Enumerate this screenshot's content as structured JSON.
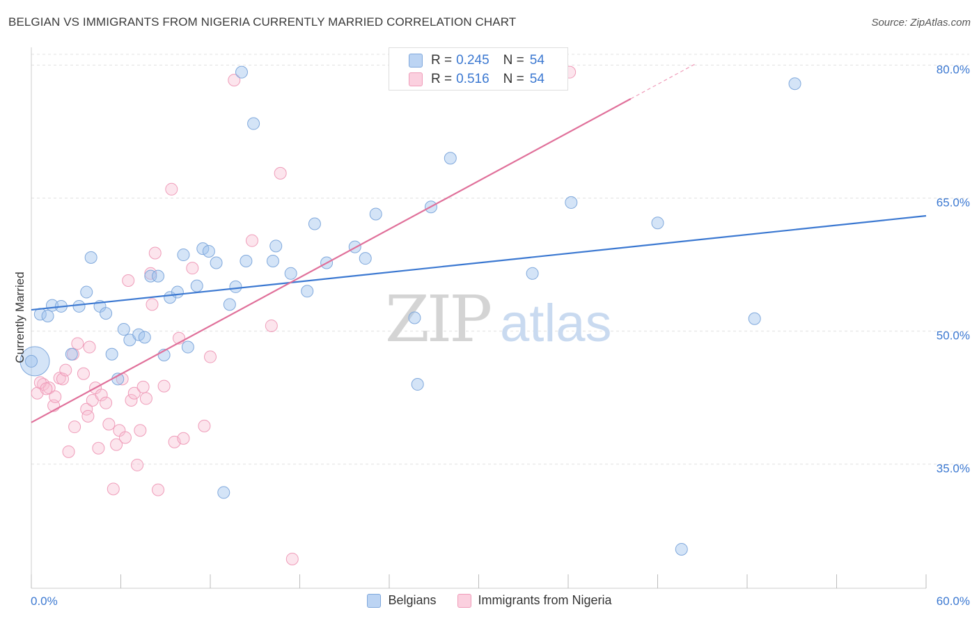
{
  "title": "BELGIAN VS IMMIGRANTS FROM NIGERIA CURRENTLY MARRIED CORRELATION CHART",
  "source": "Source: ZipAtlas.com",
  "watermark": {
    "zip": "ZIP",
    "atlas": "atlas"
  },
  "colors": {
    "blue": "#3b78d1",
    "blue_fill": "rgba(160,196,238,0.45)",
    "blue_stroke": "#7fa8dc",
    "pink": "#e0709a",
    "pink_fill": "rgba(248,190,210,0.40)",
    "pink_stroke": "#ef9cb9",
    "grid": "#e0e0e0",
    "tick_label": "#3b78d1"
  },
  "stat_legend": {
    "rows": [
      {
        "r_label": "R =",
        "r_value": "0.245",
        "n_label": "N =",
        "n_value": "54"
      },
      {
        "r_label": "R =",
        "r_value": "0.516",
        "n_label": "N =",
        "n_value": "54"
      }
    ]
  },
  "bottom_legend": {
    "items": [
      {
        "label": "Belgians"
      },
      {
        "label": "Immigrants from Nigeria"
      }
    ]
  },
  "chart_data": {
    "type": "scatter",
    "title": "BELGIAN VS IMMIGRANTS FROM NIGERIA CURRENTLY MARRIED CORRELATION CHART",
    "xlabel": "",
    "ylabel": "Currently Married",
    "xlim": [
      0,
      60
    ],
    "ylim": [
      21,
      82
    ],
    "x_tick_labels": [
      "0.0%",
      "60.0%"
    ],
    "y_ticks": [
      35,
      50,
      65,
      80
    ],
    "y_tick_labels": [
      "35.0%",
      "50.0%",
      "65.0%",
      "80.0%"
    ],
    "grid": true,
    "series": [
      {
        "name": "Belgians",
        "r": 0.245,
        "n": 54,
        "trend": {
          "x": [
            0,
            60
          ],
          "y": [
            52.4,
            63.0
          ]
        },
        "points": [
          [
            0.0,
            46.6
          ],
          [
            0.6,
            51.9
          ],
          [
            1.1,
            51.7
          ],
          [
            1.4,
            52.9
          ],
          [
            2.0,
            52.8
          ],
          [
            2.7,
            47.4
          ],
          [
            3.2,
            52.8
          ],
          [
            3.7,
            54.4
          ],
          [
            4.0,
            58.3
          ],
          [
            4.6,
            52.8
          ],
          [
            5.0,
            52.0
          ],
          [
            5.4,
            47.4
          ],
          [
            5.8,
            44.6
          ],
          [
            6.2,
            50.2
          ],
          [
            6.6,
            49.0
          ],
          [
            7.2,
            49.6
          ],
          [
            7.6,
            49.3
          ],
          [
            8.0,
            56.2
          ],
          [
            8.5,
            56.2
          ],
          [
            8.9,
            47.3
          ],
          [
            9.3,
            53.8
          ],
          [
            9.8,
            54.4
          ],
          [
            10.2,
            58.6
          ],
          [
            10.5,
            48.2
          ],
          [
            11.1,
            55.1
          ],
          [
            11.5,
            59.3
          ],
          [
            11.9,
            59.0
          ],
          [
            12.4,
            57.7
          ],
          [
            12.9,
            31.8
          ],
          [
            13.3,
            53.0
          ],
          [
            13.7,
            55.0
          ],
          [
            14.1,
            79.2
          ],
          [
            14.4,
            57.9
          ],
          [
            14.9,
            73.4
          ],
          [
            16.2,
            57.9
          ],
          [
            16.4,
            59.6
          ],
          [
            17.4,
            56.5
          ],
          [
            18.5,
            54.5
          ],
          [
            19.0,
            62.1
          ],
          [
            19.8,
            57.7
          ],
          [
            21.7,
            59.5
          ],
          [
            22.4,
            58.2
          ],
          [
            23.1,
            63.2
          ],
          [
            25.7,
            51.5
          ],
          [
            25.9,
            44.0
          ],
          [
            26.8,
            64.0
          ],
          [
            28.1,
            69.5
          ],
          [
            33.6,
            56.5
          ],
          [
            36.2,
            64.5
          ],
          [
            42.0,
            62.2
          ],
          [
            43.6,
            25.4
          ],
          [
            48.5,
            51.4
          ],
          [
            51.2,
            77.9
          ],
          [
            0.0,
            46.6
          ]
        ]
      },
      {
        "name": "Immigrants from Nigeria",
        "r": 0.516,
        "n": 54,
        "trend": {
          "x": [
            0,
            40.2
          ],
          "y": [
            39.7,
            76.2
          ]
        },
        "trend_dashed": {
          "x": [
            40.2,
            44.6
          ],
          "y": [
            76.2,
            80.2
          ]
        },
        "points": [
          [
            0.4,
            43.0
          ],
          [
            0.8,
            44.0
          ],
          [
            1.2,
            43.6
          ],
          [
            1.5,
            41.6
          ],
          [
            1.6,
            42.6
          ],
          [
            1.9,
            44.7
          ],
          [
            2.1,
            44.6
          ],
          [
            2.3,
            45.6
          ],
          [
            2.5,
            36.4
          ],
          [
            2.8,
            47.4
          ],
          [
            2.9,
            39.2
          ],
          [
            3.1,
            48.6
          ],
          [
            3.5,
            45.2
          ],
          [
            3.7,
            41.2
          ],
          [
            3.8,
            40.4
          ],
          [
            3.9,
            48.2
          ],
          [
            4.1,
            42.2
          ],
          [
            4.3,
            43.6
          ],
          [
            4.5,
            36.8
          ],
          [
            4.7,
            42.8
          ],
          [
            5.0,
            41.9
          ],
          [
            5.2,
            39.5
          ],
          [
            5.5,
            32.2
          ],
          [
            5.7,
            37.2
          ],
          [
            5.9,
            38.8
          ],
          [
            6.1,
            44.6
          ],
          [
            6.3,
            38.0
          ],
          [
            6.5,
            55.7
          ],
          [
            6.7,
            42.2
          ],
          [
            6.9,
            43.0
          ],
          [
            7.1,
            34.9
          ],
          [
            7.3,
            38.8
          ],
          [
            7.5,
            43.7
          ],
          [
            7.7,
            42.4
          ],
          [
            8.0,
            56.5
          ],
          [
            8.1,
            53.0
          ],
          [
            8.3,
            58.8
          ],
          [
            8.5,
            32.1
          ],
          [
            8.9,
            43.8
          ],
          [
            9.4,
            66.0
          ],
          [
            9.6,
            37.5
          ],
          [
            9.9,
            49.2
          ],
          [
            10.2,
            37.9
          ],
          [
            10.8,
            57.1
          ],
          [
            11.6,
            39.3
          ],
          [
            12.0,
            47.1
          ],
          [
            13.6,
            78.3
          ],
          [
            14.8,
            60.2
          ],
          [
            16.1,
            50.6
          ],
          [
            16.7,
            67.8
          ],
          [
            17.5,
            24.3
          ],
          [
            36.1,
            79.2
          ],
          [
            0.6,
            44.2
          ],
          [
            1.0,
            43.5
          ]
        ]
      }
    ]
  }
}
